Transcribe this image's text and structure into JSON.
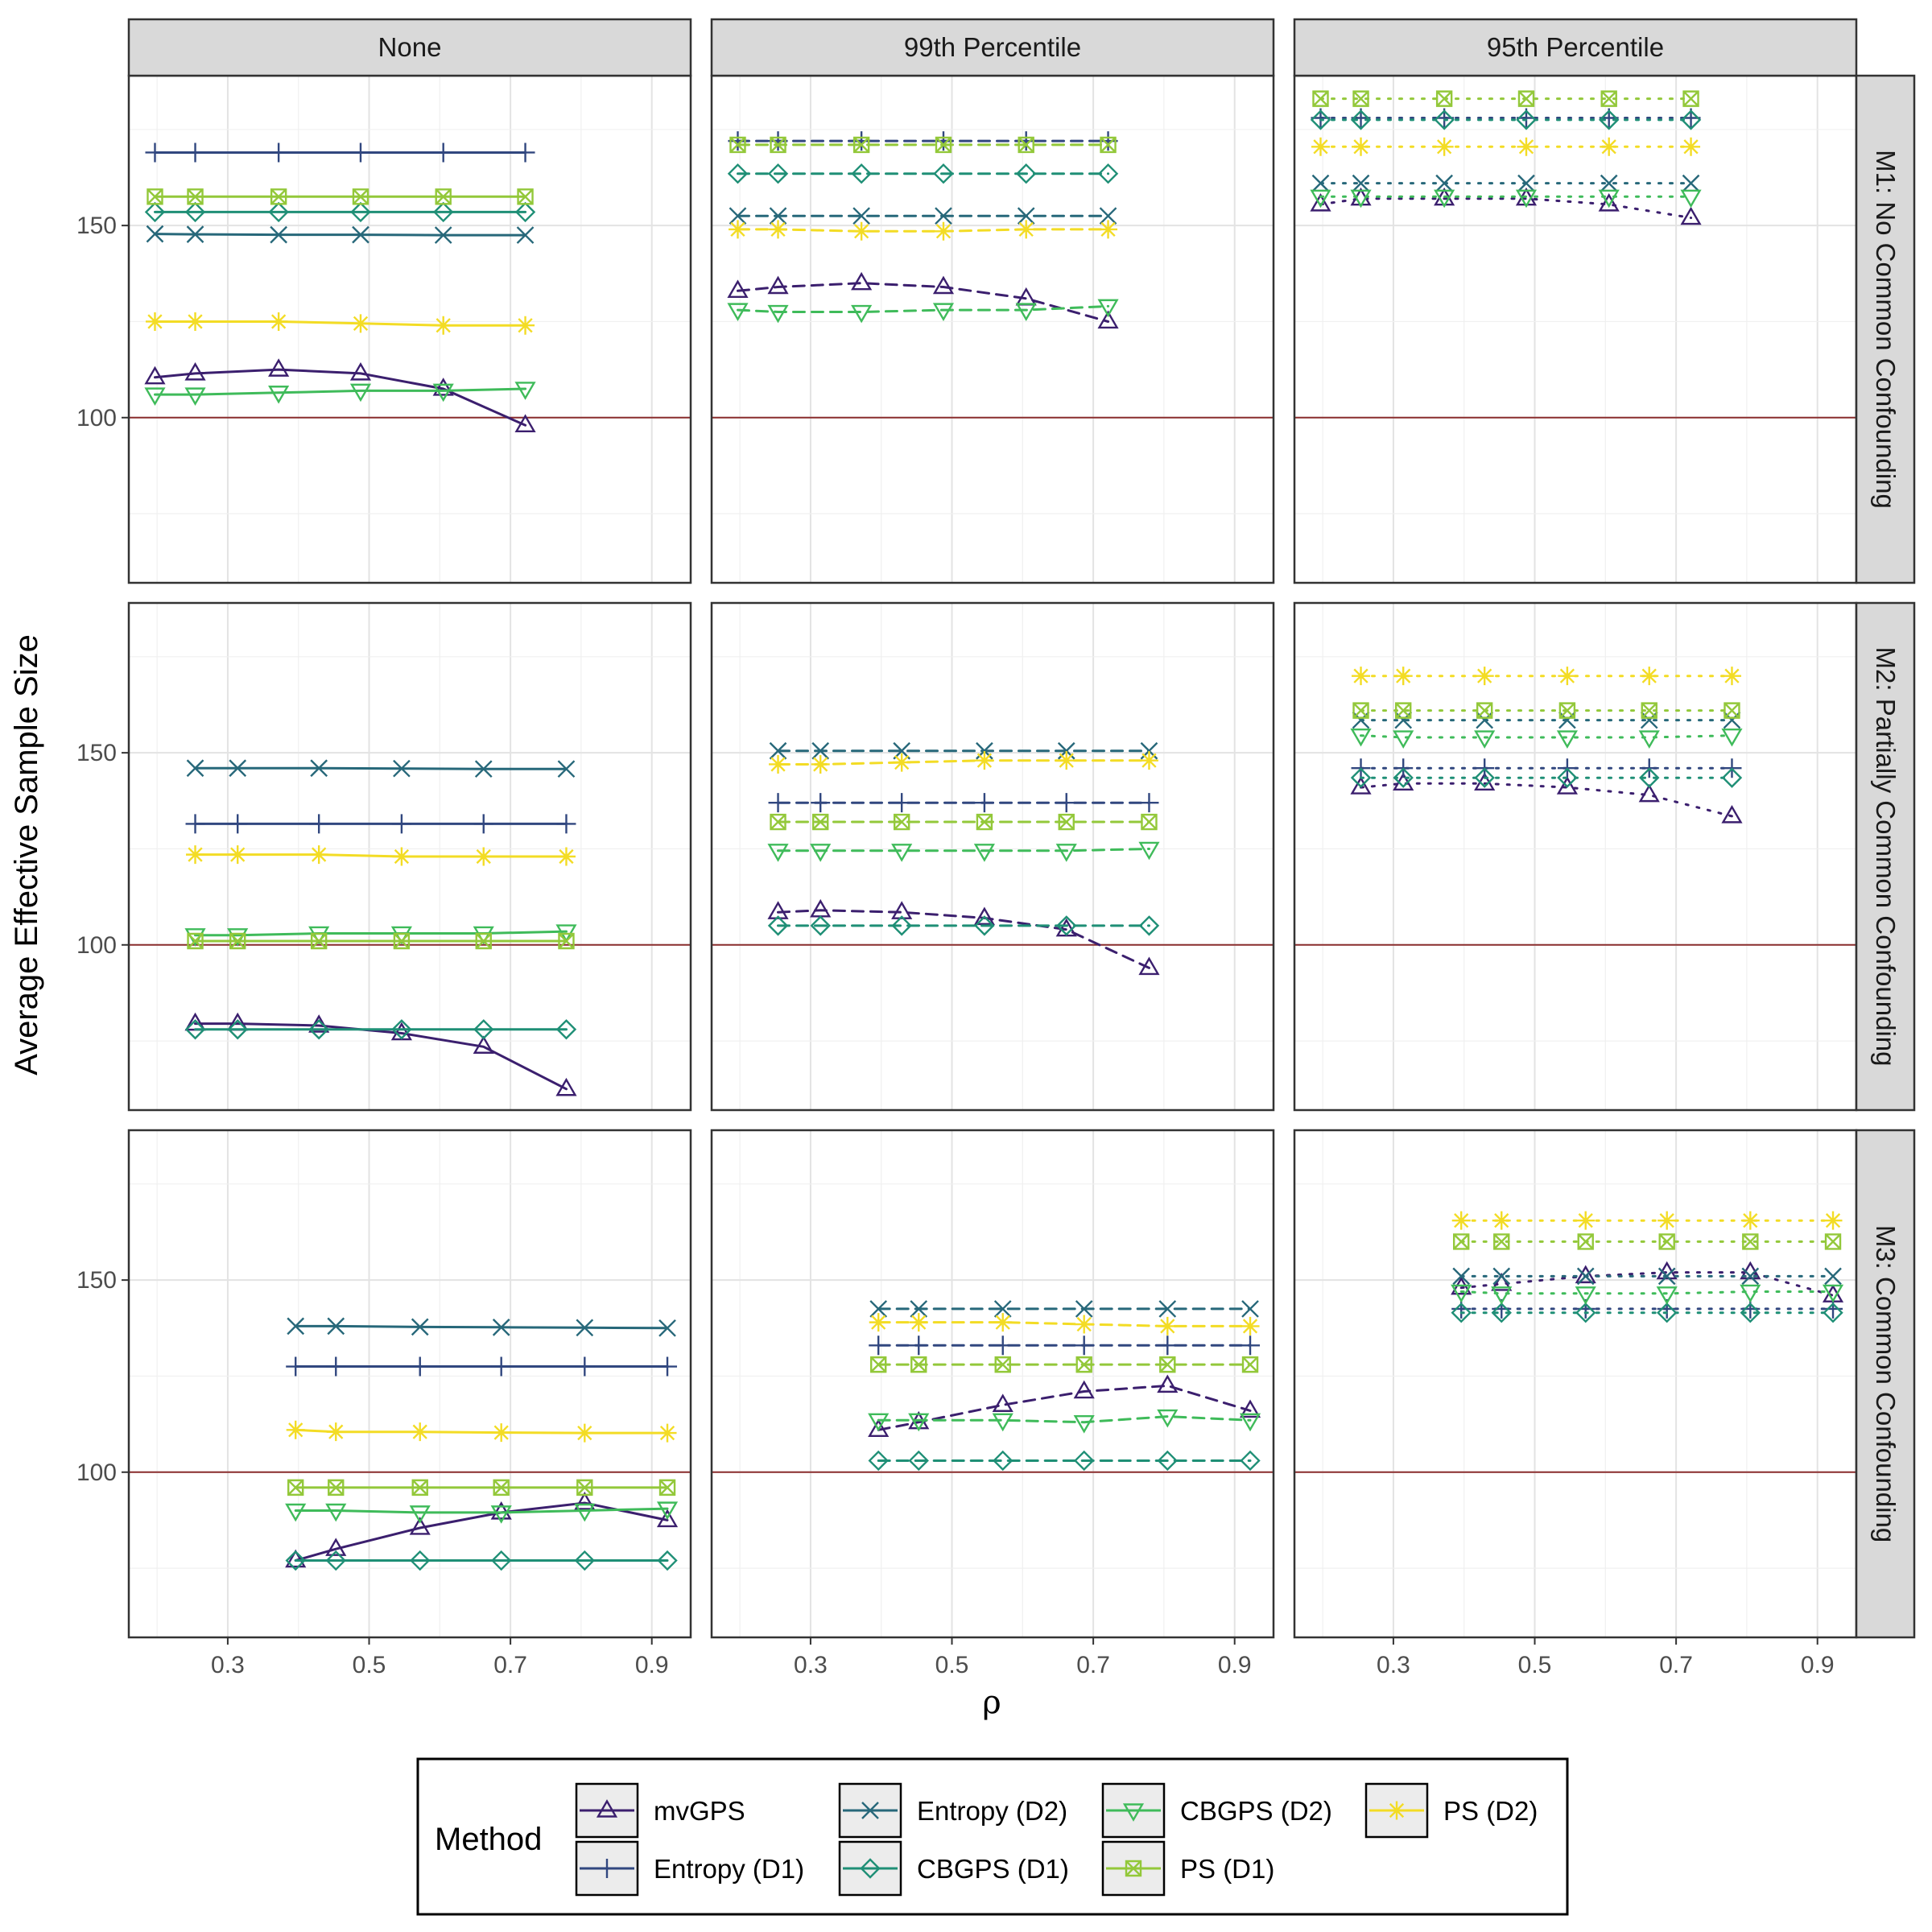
{
  "chart_data": {
    "type": "line",
    "ylabel": "Average Effective Sample Size",
    "xlabel": "ρ",
    "x_ticks": [
      "0.3",
      "0.5",
      "0.7",
      "0.9"
    ],
    "x_tick_values": [
      0.3,
      0.5,
      0.7,
      0.9
    ],
    "y_ticks": [
      "100",
      "150"
    ],
    "y_tick_values": [
      100,
      150
    ],
    "xlim": [
      0.16,
      0.955
    ],
    "ylim": [
      57,
      189
    ],
    "reference_line": {
      "y": 100,
      "color": "#8b2e2e"
    },
    "columns": [
      "None",
      "99th Percentile",
      "95th Percentile"
    ],
    "rows": [
      "M1: No Common Confounding",
      "M2: Partially Common Confounding",
      "M3: Common Confounding"
    ],
    "column_linetypes": [
      "solid",
      "dashed",
      "dotted"
    ],
    "legend": {
      "title": "Method",
      "entries": [
        "mvGPS",
        "Entropy (D1)",
        "Entropy (D2)",
        "CBGPS (D1)",
        "CBGPS (D2)",
        "PS (D1)",
        "PS (D2)"
      ]
    },
    "methods": [
      {
        "name": "mvGPS",
        "color": "#3b1f6e",
        "shape": "triangle"
      },
      {
        "name": "Entropy (D1)",
        "color": "#31477f",
        "shape": "plus"
      },
      {
        "name": "Entropy (D2)",
        "color": "#27687a",
        "shape": "cross"
      },
      {
        "name": "CBGPS (D1)",
        "color": "#1f8f76",
        "shape": "diamond"
      },
      {
        "name": "CBGPS (D2)",
        "color": "#3fbb5a",
        "shape": "triangle-down"
      },
      {
        "name": "PS (D1)",
        "color": "#93c83a",
        "shape": "square-cross"
      },
      {
        "name": "PS (D2)",
        "color": "#f3dc25",
        "shape": "asterisk"
      }
    ],
    "panels": [
      {
        "row": 0,
        "col": 0,
        "x": [
          0.197,
          0.254,
          0.372,
          0.488,
          0.605,
          0.721
        ],
        "series": {
          "mvGPS": [
            110.5,
            111.5,
            112.5,
            111.5,
            107.5,
            98
          ],
          "Entropy (D1)": [
            169,
            169,
            169,
            169,
            169,
            169
          ],
          "Entropy (D2)": [
            147.8,
            147.7,
            147.6,
            147.6,
            147.5,
            147.5
          ],
          "CBGPS (D1)": [
            153.5,
            153.5,
            153.5,
            153.5,
            153.5,
            153.5
          ],
          "CBGPS (D2)": [
            106,
            106,
            106.5,
            107,
            107,
            107.5
          ],
          "PS (D1)": [
            157.5,
            157.5,
            157.5,
            157.5,
            157.5,
            157.5
          ],
          "PS (D2)": [
            125,
            125,
            125,
            124.5,
            124,
            124
          ]
        }
      },
      {
        "row": 0,
        "col": 1,
        "x": [
          0.197,
          0.254,
          0.372,
          0.488,
          0.605,
          0.721
        ],
        "series": {
          "mvGPS": [
            133,
            134,
            135,
            134,
            131,
            125
          ],
          "Entropy (D1)": [
            172,
            172,
            172,
            172,
            172,
            172
          ],
          "Entropy (D2)": [
            152.5,
            152.5,
            152.5,
            152.5,
            152.5,
            152.5
          ],
          "CBGPS (D1)": [
            163.5,
            163.5,
            163.5,
            163.5,
            163.5,
            163.5
          ],
          "CBGPS (D2)": [
            128,
            127.5,
            127.5,
            128,
            128,
            129
          ],
          "PS (D1)": [
            171,
            171,
            171,
            171,
            171,
            171
          ],
          "PS (D2)": [
            149,
            149,
            148.5,
            148.5,
            149,
            149
          ]
        }
      },
      {
        "row": 0,
        "col": 2,
        "x": [
          0.197,
          0.254,
          0.372,
          0.488,
          0.605,
          0.721
        ],
        "series": {
          "mvGPS": [
            155.5,
            157,
            157,
            157,
            155.5,
            152
          ],
          "Entropy (D1)": [
            178,
            178,
            178,
            178,
            178,
            178
          ],
          "Entropy (D2)": [
            161,
            161,
            161,
            161,
            161,
            161
          ],
          "CBGPS (D1)": [
            177.5,
            177.5,
            177.5,
            177.5,
            177.5,
            177.5
          ],
          "CBGPS (D2)": [
            157.5,
            157.5,
            157.5,
            157.5,
            157.5,
            157.5
          ],
          "PS (D1)": [
            183,
            183,
            183,
            183,
            183,
            183
          ],
          "PS (D2)": [
            170.5,
            170.5,
            170.5,
            170.5,
            170.5,
            170.5
          ]
        }
      },
      {
        "row": 1,
        "col": 0,
        "x": [
          0.254,
          0.314,
          0.429,
          0.546,
          0.662,
          0.779
        ],
        "series": {
          "mvGPS": [
            79.5,
            79.5,
            79,
            77,
            73.5,
            62.5
          ],
          "Entropy (D1)": [
            131.5,
            131.5,
            131.5,
            131.5,
            131.5,
            131.5
          ],
          "Entropy (D2)": [
            146,
            146,
            146,
            145.9,
            145.8,
            145.8
          ],
          "CBGPS (D1)": [
            78,
            78,
            78,
            78,
            78,
            78
          ],
          "CBGPS (D2)": [
            102.5,
            102.5,
            103,
            103,
            103,
            103.5
          ],
          "PS (D1)": [
            101,
            101,
            101,
            101,
            101,
            101
          ],
          "PS (D2)": [
            123.5,
            123.5,
            123.5,
            123,
            123,
            123
          ]
        }
      },
      {
        "row": 1,
        "col": 1,
        "x": [
          0.254,
          0.314,
          0.429,
          0.546,
          0.662,
          0.779
        ],
        "series": {
          "mvGPS": [
            108.5,
            109,
            108.5,
            107,
            104,
            94
          ],
          "Entropy (D1)": [
            137,
            137,
            137,
            137,
            137,
            137
          ],
          "Entropy (D2)": [
            150.5,
            150.5,
            150.5,
            150.5,
            150.5,
            150.5
          ],
          "CBGPS (D1)": [
            105,
            105,
            105,
            105,
            105,
            105
          ],
          "CBGPS (D2)": [
            124.5,
            124.5,
            124.5,
            124.5,
            124.5,
            125
          ],
          "PS (D1)": [
            132,
            132,
            132,
            132,
            132,
            132
          ],
          "PS (D2)": [
            147,
            147,
            147.5,
            148,
            148,
            148
          ]
        }
      },
      {
        "row": 1,
        "col": 2,
        "x": [
          0.254,
          0.314,
          0.429,
          0.546,
          0.662,
          0.779
        ],
        "series": {
          "mvGPS": [
            141,
            142,
            142,
            141,
            139,
            133.5
          ],
          "Entropy (D1)": [
            146,
            146,
            146,
            146,
            146,
            146
          ],
          "Entropy (D2)": [
            158.5,
            158.5,
            158.5,
            158.5,
            158.5,
            158.5
          ],
          "CBGPS (D1)": [
            143.5,
            143.5,
            143.5,
            143.5,
            143.5,
            143.5
          ],
          "CBGPS (D2)": [
            154.5,
            154,
            154,
            154,
            154,
            154.5
          ],
          "PS (D1)": [
            161,
            161,
            161,
            161,
            161,
            161
          ],
          "PS (D2)": [
            170,
            170,
            170,
            170,
            170,
            170
          ]
        }
      },
      {
        "row": 2,
        "col": 0,
        "x": [
          0.396,
          0.453,
          0.572,
          0.687,
          0.805,
          0.922
        ],
        "series": {
          "mvGPS": [
            77,
            80,
            85.5,
            89.5,
            92,
            87.5
          ],
          "Entropy (D1)": [
            127.5,
            127.5,
            127.5,
            127.5,
            127.5,
            127.5
          ],
          "Entropy (D2)": [
            138,
            138,
            137.8,
            137.7,
            137.6,
            137.5
          ],
          "CBGPS (D1)": [
            77,
            77,
            77,
            77,
            77,
            77
          ],
          "CBGPS (D2)": [
            90,
            90,
            89.5,
            89.5,
            90,
            90.5
          ],
          "PS (D1)": [
            96,
            96,
            96,
            96,
            96,
            96
          ],
          "PS (D2)": [
            111,
            110.5,
            110.5,
            110.3,
            110.2,
            110.2
          ]
        }
      },
      {
        "row": 2,
        "col": 1,
        "x": [
          0.396,
          0.453,
          0.572,
          0.687,
          0.805,
          0.922
        ],
        "series": {
          "mvGPS": [
            111,
            113,
            117.5,
            121,
            122.5,
            116
          ],
          "Entropy (D1)": [
            133,
            133,
            133,
            133,
            133,
            133
          ],
          "Entropy (D2)": [
            142.5,
            142.5,
            142.5,
            142.5,
            142.5,
            142.5
          ],
          "CBGPS (D1)": [
            103,
            103,
            103,
            103,
            103,
            103
          ],
          "CBGPS (D2)": [
            113.5,
            113.5,
            113.5,
            113,
            114.5,
            113.5
          ],
          "PS (D1)": [
            128,
            128,
            128,
            128,
            128,
            128
          ],
          "PS (D2)": [
            139,
            139,
            139,
            138.5,
            138,
            138
          ]
        }
      },
      {
        "row": 2,
        "col": 2,
        "x": [
          0.396,
          0.453,
          0.572,
          0.687,
          0.805,
          0.922
        ],
        "series": {
          "mvGPS": [
            148,
            149,
            151,
            152,
            152,
            146
          ],
          "Entropy (D1)": [
            142.5,
            142.5,
            142.5,
            142.5,
            142.5,
            142.5
          ],
          "Entropy (D2)": [
            151,
            151,
            151,
            151,
            151,
            151
          ],
          "CBGPS (D1)": [
            141.5,
            141.5,
            141.5,
            141.5,
            141.5,
            141.5
          ],
          "CBGPS (D2)": [
            147,
            146.5,
            146.5,
            146.5,
            147,
            147
          ],
          "PS (D1)": [
            160,
            160,
            160,
            160,
            160,
            160
          ],
          "PS (D2)": [
            165.5,
            165.5,
            165.5,
            165.5,
            165.5,
            165.5
          ]
        }
      }
    ]
  }
}
